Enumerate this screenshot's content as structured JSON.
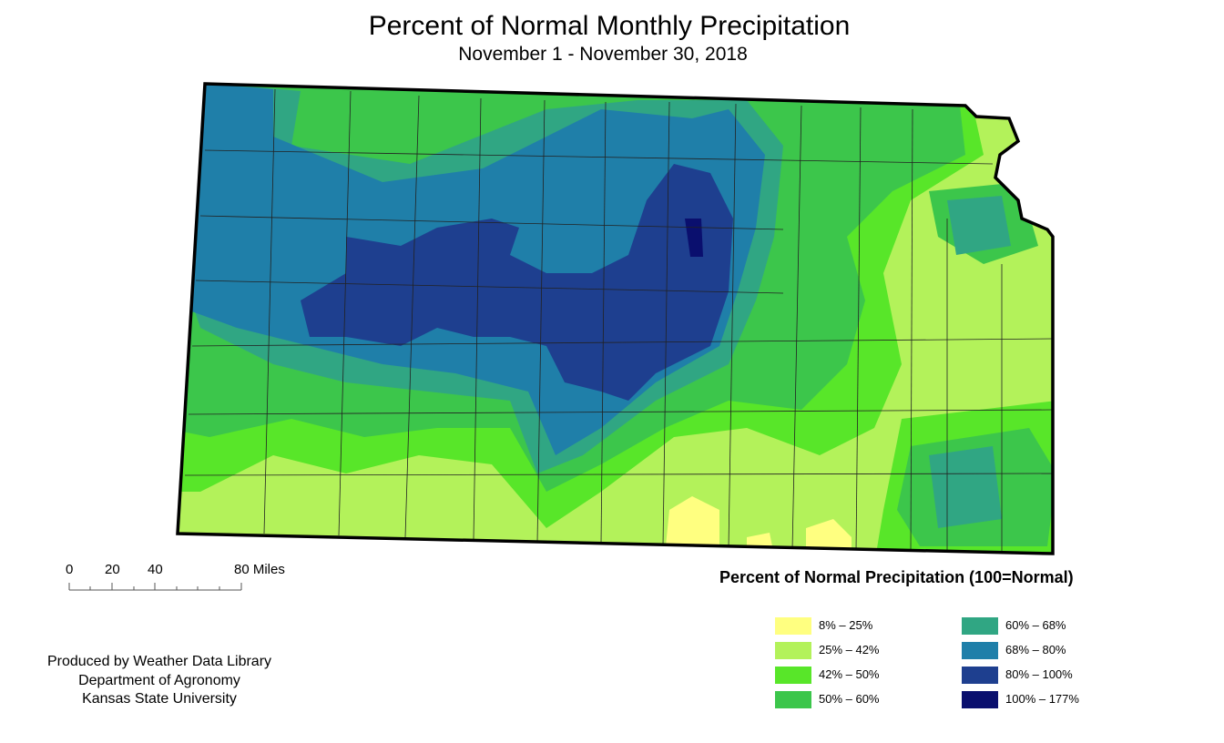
{
  "title": "Percent of Normal Monthly Precipitation",
  "subtitle": "November 1 - November 30, 2018",
  "scale_bar": {
    "labels": [
      "0",
      "20",
      "40",
      "80 Miles"
    ]
  },
  "credits": [
    "Produced by Weather Data Library",
    "Department of Agronomy",
    "Kansas State University"
  ],
  "legend": {
    "title": "Percent of Normal Precipitation (100=Normal)",
    "items": [
      {
        "label": "8% – 25%",
        "color": "#ffff80"
      },
      {
        "label": "25% – 42%",
        "color": "#b3f25a"
      },
      {
        "label": "42% – 50%",
        "color": "#58e629"
      },
      {
        "label": "50% – 60%",
        "color": "#3cc64b"
      },
      {
        "label": "60% – 68%",
        "color": "#30a683"
      },
      {
        "label": "68% – 80%",
        "color": "#1f7fa9"
      },
      {
        "label": "80% – 100%",
        "color": "#1e3f8f"
      },
      {
        "label": "100% – 177%",
        "color": "#0a0f6e"
      }
    ]
  }
}
